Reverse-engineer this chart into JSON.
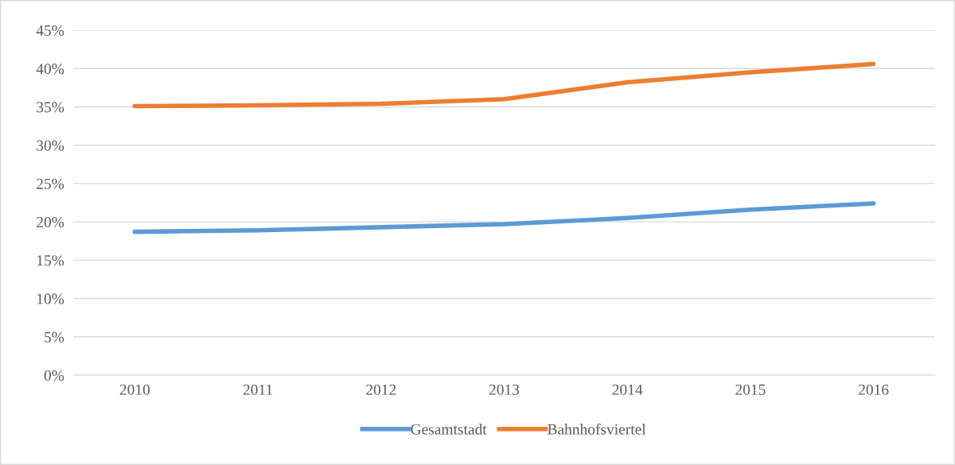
{
  "chart_data": {
    "type": "line",
    "categories": [
      "2010",
      "2011",
      "2012",
      "2013",
      "2014",
      "2015",
      "2016"
    ],
    "series": [
      {
        "name": "Gesamtstadt",
        "color": "#5b9bd5",
        "values": [
          18.7,
          18.9,
          19.3,
          19.7,
          20.5,
          21.6,
          22.4
        ]
      },
      {
        "name": "Bahnhofsviertel",
        "color": "#ed7d31",
        "values": [
          35.1,
          35.2,
          35.4,
          36.0,
          38.2,
          39.5,
          40.6
        ]
      }
    ],
    "ylim": [
      0,
      45
    ],
    "yticks": [
      {
        "value": 0,
        "label": "0%"
      },
      {
        "value": 5,
        "label": "5%"
      },
      {
        "value": 10,
        "label": "10%"
      },
      {
        "value": 15,
        "label": "15%"
      },
      {
        "value": 20,
        "label": "20%"
      },
      {
        "value": 25,
        "label": "25%"
      },
      {
        "value": 30,
        "label": "30%"
      },
      {
        "value": 35,
        "label": "35%"
      },
      {
        "value": 40,
        "label": "40%"
      },
      {
        "value": 45,
        "label": "45%"
      }
    ],
    "grid": "y",
    "legend": "bottom",
    "marker": "none",
    "line_style": "solid"
  }
}
